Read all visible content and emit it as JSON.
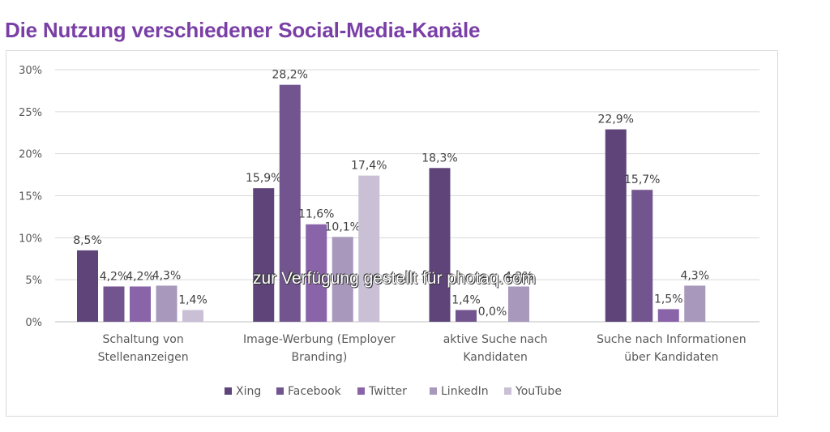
{
  "title": "Die Nutzung verschiedener Social-Media-Kanäle",
  "watermark": "zur Verfügung gestellt für photaq.com",
  "chart_data": {
    "type": "bar",
    "title": "Die Nutzung verschiedener Social-Media-Kanäle",
    "categories": [
      [
        "Schaltung von",
        "Stellenanzeigen"
      ],
      [
        "Image-Werbung (Employer",
        "Branding)"
      ],
      [
        "aktive Suche nach",
        "Kandidaten"
      ],
      [
        "Suche nach Informationen",
        "über Kandidaten"
      ]
    ],
    "series": [
      {
        "name": "Xing",
        "color": "#5e4478",
        "values": [
          8.5,
          15.9,
          18.3,
          22.9
        ],
        "labels": [
          "8,5%",
          "15,9%",
          "18,3%",
          "22,9%"
        ]
      },
      {
        "name": "Facebook",
        "color": "#72558f",
        "values": [
          4.2,
          28.2,
          1.4,
          15.7
        ],
        "labels": [
          "4,2%",
          "28,2%",
          "1,4%",
          "15,7%"
        ]
      },
      {
        "name": "Twitter",
        "color": "#8a64a8",
        "values": [
          4.2,
          11.6,
          0.0,
          1.5
        ],
        "labels": [
          "4,2%",
          "11,6%",
          "0,0%",
          "1,5%"
        ]
      },
      {
        "name": "LinkedIn",
        "color": "#a898bc",
        "values": [
          4.3,
          10.1,
          4.2,
          4.3
        ],
        "labels": [
          "4,3%",
          "10,1%",
          "4,2%",
          "4,3%"
        ]
      },
      {
        "name": "YouTube",
        "color": "#c9c0d6",
        "values": [
          1.4,
          17.4,
          null,
          null
        ],
        "labels": [
          "1,4%",
          "17,4%",
          "",
          ""
        ]
      }
    ],
    "yticks": [
      "0%",
      "5%",
      "10%",
      "15%",
      "20%",
      "25%",
      "30%"
    ],
    "ylim": [
      0,
      30
    ],
    "grid": true,
    "legend": "bottom"
  }
}
